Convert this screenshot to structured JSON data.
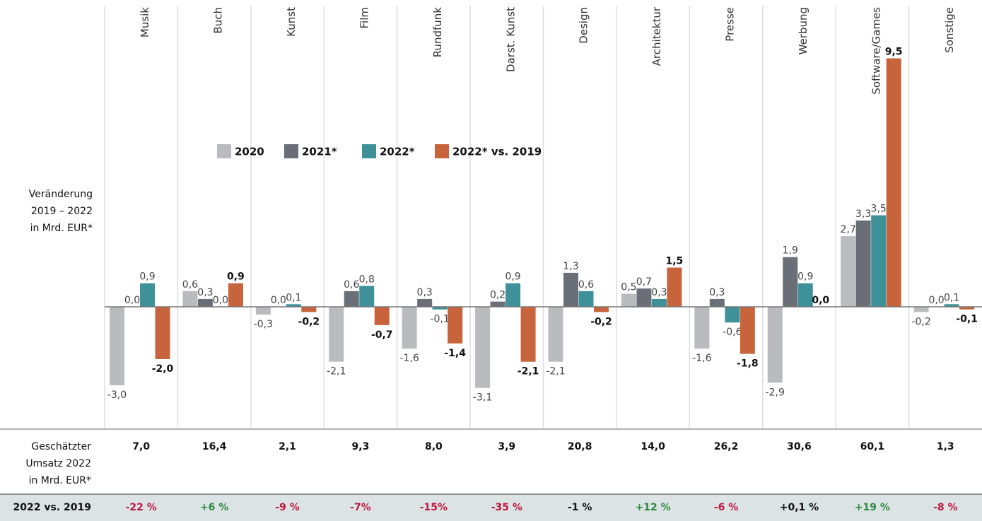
{
  "chart_data": {
    "type": "bar",
    "categories": [
      "Musik",
      "Buch",
      "Kunst",
      "Film",
      "Rundfunk",
      "Darst. Kunst",
      "Design",
      "Architektur",
      "Presse",
      "Werbung",
      "Software/Games",
      "Sonstige"
    ],
    "ylabel": [
      "Veränderung",
      "2019 – 2022",
      "in Mrd. EUR*"
    ],
    "legend": "top",
    "series": [
      {
        "name": "2020",
        "color": "#b9bbbf",
        "values": [
          -3.0,
          0.6,
          -0.3,
          -2.1,
          -1.6,
          -3.1,
          -2.1,
          0.5,
          -1.6,
          -2.9,
          2.7,
          -0.2
        ],
        "value_labels": [
          "-3,0",
          "0,6",
          "-0,3",
          "-2,1",
          "-1,6",
          "-3,1",
          "-2,1",
          "0,5",
          "-1,6",
          "-2,9",
          "2,7",
          "-0,2"
        ]
      },
      {
        "name": "2021*",
        "color": "#6a6e76",
        "values": [
          0.0,
          0.3,
          0.0,
          0.6,
          0.3,
          0.2,
          1.3,
          0.7,
          0.3,
          1.9,
          3.3,
          0.0
        ],
        "value_labels": [
          "0,0",
          "0,3",
          "0,0",
          "0,6",
          "0,3",
          "0,2",
          "1,3",
          "0,7",
          "0,3",
          "1,9",
          "3,3",
          "0,0"
        ]
      },
      {
        "name": "2022*",
        "color": "#3f9199",
        "values": [
          0.9,
          0.0,
          0.1,
          0.8,
          -0.1,
          0.9,
          0.6,
          0.3,
          -0.6,
          0.9,
          3.5,
          0.1
        ],
        "value_labels": [
          "0,9",
          "0,0",
          "0,1",
          "0,8",
          "-0,1",
          "0,9",
          "0,6",
          "0,3",
          "-0,6",
          "0,9",
          "3,5",
          "0,1"
        ]
      },
      {
        "name": "2022* vs. 2019",
        "color": "#c8643c",
        "values": [
          -2.0,
          0.9,
          -0.2,
          -0.7,
          -1.4,
          -2.1,
          -0.2,
          1.5,
          -1.8,
          0.0,
          9.5,
          -0.1
        ],
        "value_labels": [
          "-2,0",
          "0,9",
          "-0,2",
          "-0,7",
          "-1,4",
          "-2,1",
          "-0,2",
          "1,5",
          "-1,8",
          "0,0",
          "9,5",
          "-0,1"
        ]
      }
    ]
  },
  "table": {
    "rows": [
      {
        "label": [
          "Geschätzter",
          "Umsatz 2022",
          "in Mrd. EUR*"
        ],
        "cells": [
          "7,0",
          "16,4",
          "2,1",
          "9,3",
          "8,0",
          "3,9",
          "20,8",
          "14,0",
          "26,2",
          "30,6",
          "60,1",
          "1,3"
        ]
      },
      {
        "label": [
          "2022 vs. 2019"
        ],
        "cells": [
          "-22 %",
          "+6 %",
          "-9 %",
          "-7%",
          "-15%",
          "-35 %",
          "-1 %",
          "+12 %",
          "-6 %",
          "+0,1 %",
          "+19 %",
          "-8 %"
        ],
        "colors": [
          "#c0163e",
          "#2e8b3e",
          "#c0163e",
          "#c0163e",
          "#c0163e",
          "#c0163e",
          "#111111",
          "#2e8b3e",
          "#c0163e",
          "#111111",
          "#2e8b3e",
          "#c0163e"
        ]
      }
    ]
  }
}
